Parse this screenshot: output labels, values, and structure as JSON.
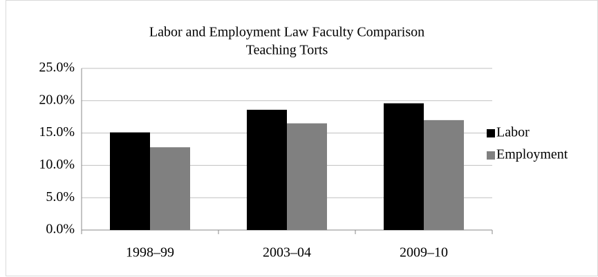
{
  "chart_data": {
    "type": "bar",
    "title": [
      "Labor and Employment Law Faculty Comparison",
      "Teaching Torts"
    ],
    "categories": [
      "1998–99",
      "2003–04",
      "2009–10"
    ],
    "series": [
      {
        "name": "Labor",
        "color": "#000000",
        "values": [
          15.1,
          18.6,
          19.6
        ]
      },
      {
        "name": "Employment",
        "color": "#808080",
        "values": [
          12.8,
          16.5,
          17.0
        ]
      }
    ],
    "ylim": [
      0,
      25
    ],
    "yticks": [
      {
        "value": 0,
        "label": "0.0%"
      },
      {
        "value": 5,
        "label": "5.0%"
      },
      {
        "value": 10,
        "label": "10.0%"
      },
      {
        "value": 15,
        "label": "15.0%"
      },
      {
        "value": 20,
        "label": "20.0%"
      },
      {
        "value": 25,
        "label": "25.0%"
      }
    ],
    "grid": true,
    "legend": "right"
  }
}
